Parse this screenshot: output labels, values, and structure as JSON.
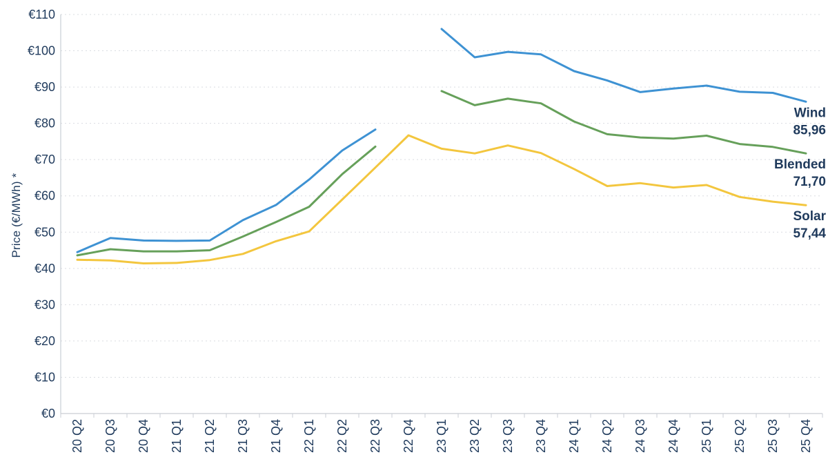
{
  "y_axis": {
    "title": "Price (€/MWh) *",
    "tick_prefix": "€",
    "min": 0,
    "max": 110,
    "step": 10
  },
  "chart_data": {
    "type": "line",
    "title": "",
    "xlabel": "",
    "ylabel": "Price (€/MWh) *",
    "ylim": [
      0,
      110
    ],
    "grid": "horizontal-dashed",
    "legend_position": "right-end-of-line",
    "x_categories": [
      "20 Q2",
      "20 Q3",
      "20 Q4",
      "21 Q1",
      "21 Q2",
      "21 Q3",
      "21 Q4",
      "22 Q1",
      "22 Q2",
      "22 Q3",
      "22 Q4",
      "23 Q1",
      "23 Q2",
      "23 Q3",
      "23 Q4",
      "24 Q1",
      "24 Q2",
      "24 Q3",
      "24 Q4",
      "25 Q1",
      "25 Q2",
      "25 Q3",
      "25 Q4"
    ],
    "series": [
      {
        "name": "Wind",
        "color": "#3e92d3",
        "end_label": "Wind",
        "end_value": "85,96",
        "values": [
          44.5,
          48.4,
          47.7,
          47.6,
          47.7,
          53.3,
          57.5,
          64.5,
          72.5,
          78.3,
          null,
          106.0,
          98.2,
          99.7,
          99.0,
          94.4,
          91.8,
          88.6,
          89.6,
          90.4,
          88.7,
          88.4,
          85.96
        ]
      },
      {
        "name": "Blended",
        "color": "#66a05a",
        "end_label": "Blended",
        "end_value": "71,70",
        "values": [
          43.6,
          45.3,
          44.7,
          44.7,
          45.0,
          48.8,
          52.8,
          57.0,
          66.0,
          73.6,
          null,
          88.9,
          85.0,
          86.8,
          85.5,
          80.5,
          77.0,
          76.1,
          75.8,
          76.6,
          74.3,
          73.5,
          71.7
        ]
      },
      {
        "name": "Solar",
        "color": "#f3c63e",
        "end_label": "Solar",
        "end_value": "57,44",
        "values": [
          42.4,
          42.2,
          41.4,
          41.5,
          42.3,
          44.0,
          47.5,
          50.2,
          59.0,
          67.8,
          76.7,
          73.0,
          71.7,
          73.9,
          71.8,
          67.4,
          62.7,
          63.5,
          62.3,
          63.0,
          59.7,
          58.4,
          57.44
        ]
      }
    ]
  },
  "colors": {
    "text": "#1f3a5c",
    "grid": "#d9dce1",
    "axis": "#c9ced4",
    "background": "#ffffff"
  }
}
